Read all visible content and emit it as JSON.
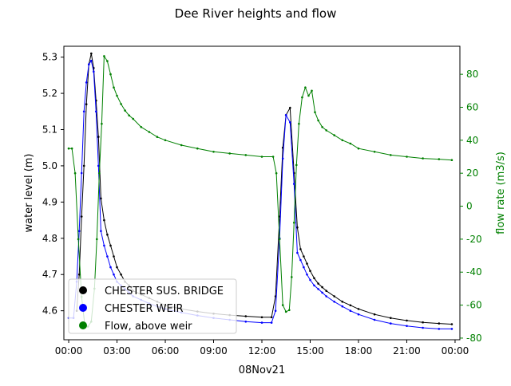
{
  "chart_data": {
    "type": "line",
    "title": "Dee River heights and flow",
    "xlabel": "08Nov21",
    "ylabel_left": "water level (m)",
    "ylabel_right": "flow rate (m3/s)",
    "x_ticks": [
      "00:00",
      "03:00",
      "06:00",
      "09:00",
      "12:00",
      "15:00",
      "18:00",
      "21:00",
      "00:00"
    ],
    "x_tick_hours": [
      0,
      3,
      6,
      9,
      12,
      15,
      18,
      21,
      24
    ],
    "xlim_hours": [
      -0.3,
      24.3
    ],
    "y_left_ticks": [
      4.6,
      4.7,
      4.8,
      4.9,
      5.0,
      5.1,
      5.2,
      5.3
    ],
    "ylim_left": [
      4.52,
      5.33
    ],
    "y_right_ticks": [
      -80,
      -60,
      -40,
      -20,
      0,
      20,
      40,
      60,
      80
    ],
    "ylim_right": [
      -81,
      97
    ],
    "grid": false,
    "legend_position": "lower-left",
    "colors": {
      "chester_sus_bridge": "#000000",
      "chester_weir": "#0000ff",
      "flow": "#008000"
    },
    "series": [
      {
        "name": "CHESTER SUS. BRIDGE",
        "axis": "left",
        "color": "#000000",
        "points": [
          [
            0.5,
            4.6
          ],
          [
            0.65,
            4.7
          ],
          [
            0.8,
            4.86
          ],
          [
            0.95,
            5.0
          ],
          [
            1.1,
            5.17
          ],
          [
            1.25,
            5.28
          ],
          [
            1.4,
            5.31
          ],
          [
            1.55,
            5.27
          ],
          [
            1.7,
            5.18
          ],
          [
            1.85,
            5.08
          ],
          [
            2.0,
            4.91
          ],
          [
            2.2,
            4.85
          ],
          [
            2.4,
            4.81
          ],
          [
            2.6,
            4.78
          ],
          [
            2.8,
            4.75
          ],
          [
            3.0,
            4.72
          ],
          [
            3.25,
            4.7
          ],
          [
            3.5,
            4.68
          ],
          [
            3.75,
            4.67
          ],
          [
            4.0,
            4.655
          ],
          [
            4.5,
            4.645
          ],
          [
            5.0,
            4.635
          ],
          [
            5.5,
            4.625
          ],
          [
            6.0,
            4.615
          ],
          [
            7.0,
            4.605
          ],
          [
            8.0,
            4.598
          ],
          [
            9.0,
            4.592
          ],
          [
            10.0,
            4.588
          ],
          [
            11.0,
            4.585
          ],
          [
            12.0,
            4.582
          ],
          [
            12.6,
            4.582
          ],
          [
            12.85,
            4.64
          ],
          [
            13.1,
            4.86
          ],
          [
            13.3,
            5.05
          ],
          [
            13.5,
            5.14
          ],
          [
            13.75,
            5.16
          ],
          [
            14.0,
            4.98
          ],
          [
            14.2,
            4.83
          ],
          [
            14.4,
            4.77
          ],
          [
            14.6,
            4.75
          ],
          [
            14.8,
            4.73
          ],
          [
            15.0,
            4.71
          ],
          [
            15.25,
            4.69
          ],
          [
            15.5,
            4.675
          ],
          [
            15.75,
            4.665
          ],
          [
            16.0,
            4.655
          ],
          [
            16.5,
            4.64
          ],
          [
            17.0,
            4.625
          ],
          [
            17.5,
            4.615
          ],
          [
            18.0,
            4.605
          ],
          [
            19.0,
            4.59
          ],
          [
            20.0,
            4.58
          ],
          [
            21.0,
            4.573
          ],
          [
            22.0,
            4.568
          ],
          [
            23.0,
            4.565
          ],
          [
            23.8,
            4.563
          ]
        ]
      },
      {
        "name": "CHESTER WEIR",
        "axis": "left",
        "color": "#0000ff",
        "points": [
          [
            0.0,
            4.58
          ],
          [
            0.3,
            4.58
          ],
          [
            0.5,
            4.68
          ],
          [
            0.65,
            4.82
          ],
          [
            0.8,
            4.98
          ],
          [
            0.95,
            5.15
          ],
          [
            1.1,
            5.23
          ],
          [
            1.25,
            5.28
          ],
          [
            1.4,
            5.29
          ],
          [
            1.55,
            5.26
          ],
          [
            1.7,
            5.15
          ],
          [
            1.85,
            5.0
          ],
          [
            2.0,
            4.82
          ],
          [
            2.2,
            4.78
          ],
          [
            2.4,
            4.75
          ],
          [
            2.6,
            4.72
          ],
          [
            2.8,
            4.7
          ],
          [
            3.0,
            4.68
          ],
          [
            3.25,
            4.67
          ],
          [
            3.5,
            4.66
          ],
          [
            3.75,
            4.65
          ],
          [
            4.0,
            4.64
          ],
          [
            4.5,
            4.63
          ],
          [
            5.0,
            4.62
          ],
          [
            5.5,
            4.612
          ],
          [
            6.0,
            4.605
          ],
          [
            7.0,
            4.595
          ],
          [
            8.0,
            4.587
          ],
          [
            9.0,
            4.58
          ],
          [
            10.0,
            4.575
          ],
          [
            11.0,
            4.57
          ],
          [
            12.0,
            4.567
          ],
          [
            12.6,
            4.567
          ],
          [
            12.85,
            4.6
          ],
          [
            13.1,
            4.8
          ],
          [
            13.3,
            5.02
          ],
          [
            13.5,
            5.14
          ],
          [
            13.75,
            5.12
          ],
          [
            14.0,
            4.95
          ],
          [
            14.2,
            4.76
          ],
          [
            14.4,
            4.74
          ],
          [
            14.6,
            4.72
          ],
          [
            14.8,
            4.7
          ],
          [
            15.0,
            4.685
          ],
          [
            15.25,
            4.67
          ],
          [
            15.5,
            4.66
          ],
          [
            15.75,
            4.65
          ],
          [
            16.0,
            4.64
          ],
          [
            16.5,
            4.625
          ],
          [
            17.0,
            4.612
          ],
          [
            17.5,
            4.6
          ],
          [
            18.0,
            4.59
          ],
          [
            19.0,
            4.575
          ],
          [
            20.0,
            4.565
          ],
          [
            21.0,
            4.558
          ],
          [
            22.0,
            4.553
          ],
          [
            23.0,
            4.55
          ],
          [
            23.8,
            4.55
          ]
        ]
      },
      {
        "name": "Flow, above weir",
        "axis": "right",
        "color": "#008000",
        "points": [
          [
            0.0,
            35
          ],
          [
            0.2,
            35
          ],
          [
            0.4,
            20
          ],
          [
            0.6,
            -20
          ],
          [
            0.8,
            -55
          ],
          [
            1.0,
            -72
          ],
          [
            1.2,
            -73
          ],
          [
            1.4,
            -70
          ],
          [
            1.6,
            -50
          ],
          [
            1.75,
            -20
          ],
          [
            1.9,
            20
          ],
          [
            2.05,
            50
          ],
          [
            2.2,
            91
          ],
          [
            2.4,
            88
          ],
          [
            2.6,
            80
          ],
          [
            2.8,
            72
          ],
          [
            3.0,
            67
          ],
          [
            3.25,
            62
          ],
          [
            3.5,
            58
          ],
          [
            3.75,
            55
          ],
          [
            4.0,
            53
          ],
          [
            4.5,
            48
          ],
          [
            5.0,
            45
          ],
          [
            5.5,
            42
          ],
          [
            6.0,
            40
          ],
          [
            7.0,
            37
          ],
          [
            8.0,
            35
          ],
          [
            9.0,
            33
          ],
          [
            10.0,
            32
          ],
          [
            11.0,
            31
          ],
          [
            12.0,
            30
          ],
          [
            12.7,
            30
          ],
          [
            12.9,
            20
          ],
          [
            13.1,
            -20
          ],
          [
            13.3,
            -60
          ],
          [
            13.5,
            -64
          ],
          [
            13.7,
            -63
          ],
          [
            13.85,
            -43
          ],
          [
            14.0,
            -10
          ],
          [
            14.15,
            25
          ],
          [
            14.3,
            50
          ],
          [
            14.5,
            66
          ],
          [
            14.7,
            72
          ],
          [
            14.9,
            67
          ],
          [
            15.1,
            70
          ],
          [
            15.3,
            57
          ],
          [
            15.5,
            52
          ],
          [
            15.75,
            48
          ],
          [
            16.0,
            46
          ],
          [
            16.5,
            43
          ],
          [
            17.0,
            40
          ],
          [
            17.5,
            38
          ],
          [
            18.0,
            35
          ],
          [
            19.0,
            33
          ],
          [
            20.0,
            31
          ],
          [
            21.0,
            30
          ],
          [
            22.0,
            29
          ],
          [
            23.0,
            28.5
          ],
          [
            23.8,
            28
          ]
        ]
      }
    ]
  }
}
